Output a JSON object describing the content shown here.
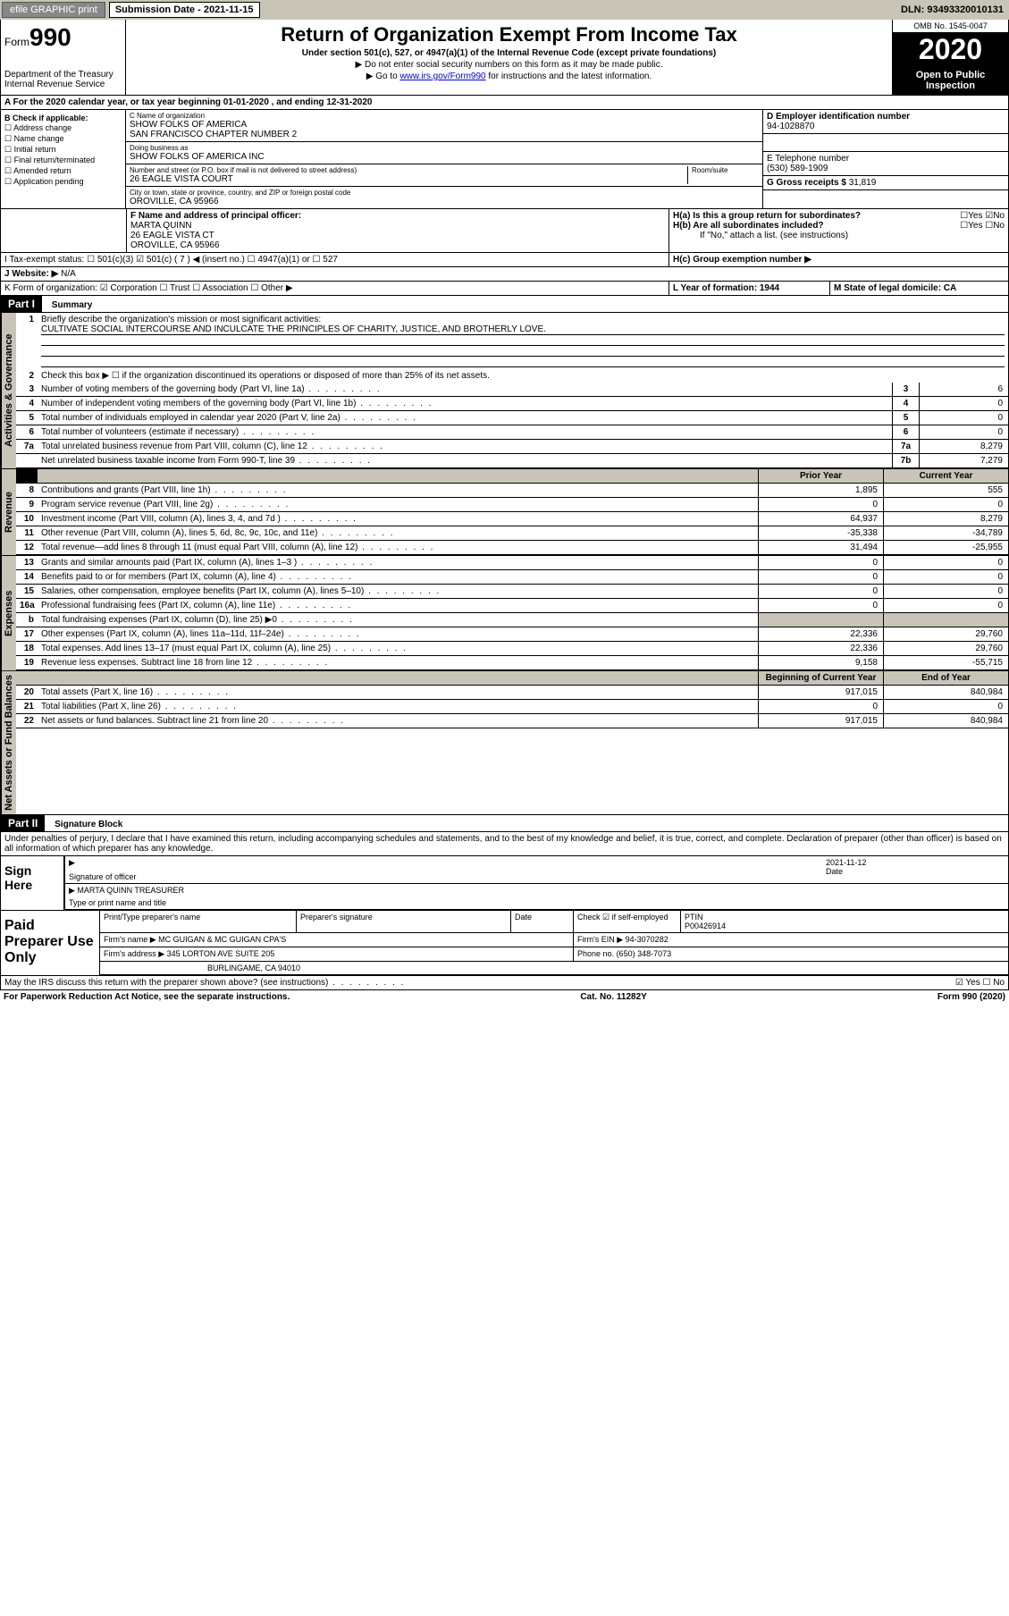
{
  "topbar": {
    "efile": "efile GRAPHIC print",
    "sub_label": "Submission Date - 2021-11-15",
    "dln": "DLN: 93493320010131"
  },
  "header": {
    "form": "Form",
    "form_num": "990",
    "dept": "Department of the Treasury\nInternal Revenue Service",
    "title": "Return of Organization Exempt From Income Tax",
    "subtitle": "Under section 501(c), 527, or 4947(a)(1) of the Internal Revenue Code (except private foundations)",
    "note1": "▶ Do not enter social security numbers on this form as it may be made public.",
    "note2_pre": "▶ Go to ",
    "note2_link": "www.irs.gov/Form990",
    "note2_post": " for instructions and the latest information.",
    "omb": "OMB No. 1545-0047",
    "year": "2020",
    "open": "Open to Public Inspection"
  },
  "section_a": "A  For the 2020 calendar year, or tax year beginning 01-01-2020    , and ending 12-31-2020",
  "col_b": {
    "hdr": "B Check if applicable:",
    "items": [
      "☐ Address change",
      "☐ Name change",
      "☐ Initial return",
      "☐ Final return/terminated",
      "☐ Amended return",
      "☐ Application pending"
    ]
  },
  "col_c": {
    "name_label": "C Name of organization",
    "name1": "SHOW FOLKS OF AMERICA",
    "name2": "SAN FRANCISCO CHAPTER NUMBER 2",
    "dba_label": "Doing business as",
    "dba": "SHOW FOLKS OF AMERICA INC",
    "addr_label": "Number and street (or P.O. box if mail is not delivered to street address)",
    "addr": "26 EAGLE VISTA COURT",
    "room_label": "Room/suite",
    "city_label": "City or town, state or province, country, and ZIP or foreign postal code",
    "city": "OROVILLE, CA  95966"
  },
  "col_d": {
    "ein_label": "D Employer identification number",
    "ein": "94-1028870",
    "tel_label": "E Telephone number",
    "tel": "(530) 589-1909",
    "gross_label": "G Gross receipts $",
    "gross": "31,819"
  },
  "row_f": {
    "label": "F  Name and address of principal officer:",
    "name": "MARTA QUINN",
    "addr1": "26 EAGLE VISTA CT",
    "addr2": "OROVILLE, CA  95966"
  },
  "row_h": {
    "ha": "H(a)  Is this a group return for subordinates?",
    "ha_ans": "☐Yes  ☑No",
    "hb": "H(b)  Are all subordinates included?",
    "hb_ans": "☐Yes  ☐No",
    "hb_note": "If \"No,\" attach a list. (see instructions)",
    "hc": "H(c)  Group exemption number ▶"
  },
  "row_i": {
    "label": "I    Tax-exempt status:",
    "opts": "☐ 501(c)(3)   ☑  501(c) ( 7 ) ◀ (insert no.)    ☐ 4947(a)(1) or   ☐ 527"
  },
  "row_j": {
    "label": "J   Website: ▶",
    "val": "N/A"
  },
  "row_k": {
    "label": "K Form of organization:  ☑ Corporation  ☐ Trust  ☐ Association  ☐ Other ▶",
    "l": "L Year of formation: 1944",
    "m": "M State of legal domicile: CA"
  },
  "part1": {
    "hdr": "Part I",
    "title": "Summary",
    "q1": "Briefly describe the organization's mission or most significant activities:",
    "q1_val": "CULTIVATE SOCIAL INTERCOURSE AND INCULCATE THE PRINCIPLES OF CHARITY, JUSTICE, AND BROTHERLY LOVE.",
    "q2": "Check this box ▶ ☐  if the organization discontinued its operations or disposed of more than 25% of its net assets.",
    "rows": [
      {
        "n": "3",
        "t": "Number of voting members of the governing body (Part VI, line 1a)",
        "a": "3",
        "v": "6"
      },
      {
        "n": "4",
        "t": "Number of independent voting members of the governing body (Part VI, line 1b)",
        "a": "4",
        "v": "0"
      },
      {
        "n": "5",
        "t": "Total number of individuals employed in calendar year 2020 (Part V, line 2a)",
        "a": "5",
        "v": "0"
      },
      {
        "n": "6",
        "t": "Total number of volunteers (estimate if necessary)",
        "a": "6",
        "v": "0"
      },
      {
        "n": "7a",
        "t": "Total unrelated business revenue from Part VIII, column (C), line 12",
        "a": "7a",
        "v": "8,279"
      },
      {
        "n": "",
        "t": "Net unrelated business taxable income from Form 990-T, line 39",
        "a": "7b",
        "v": "7,279"
      }
    ],
    "hdr_prior": "Prior Year",
    "hdr_curr": "Current Year",
    "vtab_gov": "Activities & Governance",
    "vtab_rev": "Revenue",
    "vtab_exp": "Expenses",
    "vtab_net": "Net Assets or Fund Balances",
    "revenue": [
      {
        "n": "8",
        "t": "Contributions and grants (Part VIII, line 1h)",
        "p": "1,895",
        "c": "555"
      },
      {
        "n": "9",
        "t": "Program service revenue (Part VIII, line 2g)",
        "p": "0",
        "c": "0"
      },
      {
        "n": "10",
        "t": "Investment income (Part VIII, column (A), lines 3, 4, and 7d )",
        "p": "64,937",
        "c": "8,279"
      },
      {
        "n": "11",
        "t": "Other revenue (Part VIII, column (A), lines 5, 6d, 8c, 9c, 10c, and 11e)",
        "p": "-35,338",
        "c": "-34,789"
      },
      {
        "n": "12",
        "t": "Total revenue—add lines 8 through 11 (must equal Part VIII, column (A), line 12)",
        "p": "31,494",
        "c": "-25,955"
      }
    ],
    "expenses": [
      {
        "n": "13",
        "t": "Grants and similar amounts paid (Part IX, column (A), lines 1–3 )",
        "p": "0",
        "c": "0"
      },
      {
        "n": "14",
        "t": "Benefits paid to or for members (Part IX, column (A), line 4)",
        "p": "0",
        "c": "0"
      },
      {
        "n": "15",
        "t": "Salaries, other compensation, employee benefits (Part IX, column (A), lines 5–10)",
        "p": "0",
        "c": "0"
      },
      {
        "n": "16a",
        "t": "Professional fundraising fees (Part IX, column (A), line 11e)",
        "p": "0",
        "c": "0"
      },
      {
        "n": "b",
        "t": "Total fundraising expenses (Part IX, column (D), line 25) ▶0",
        "p": "",
        "c": ""
      },
      {
        "n": "17",
        "t": "Other expenses (Part IX, column (A), lines 11a–11d, 11f–24e)",
        "p": "22,336",
        "c": "29,760"
      },
      {
        "n": "18",
        "t": "Total expenses. Add lines 13–17 (must equal Part IX, column (A), line 25)",
        "p": "22,336",
        "c": "29,760"
      },
      {
        "n": "19",
        "t": "Revenue less expenses. Subtract line 18 from line 12",
        "p": "9,158",
        "c": "-55,715"
      }
    ],
    "hdr_beg": "Beginning of Current Year",
    "hdr_end": "End of Year",
    "net": [
      {
        "n": "20",
        "t": "Total assets (Part X, line 16)",
        "p": "917,015",
        "c": "840,984"
      },
      {
        "n": "21",
        "t": "Total liabilities (Part X, line 26)",
        "p": "0",
        "c": "0"
      },
      {
        "n": "22",
        "t": "Net assets or fund balances. Subtract line 21 from line 20",
        "p": "917,015",
        "c": "840,984"
      }
    ]
  },
  "part2": {
    "hdr": "Part II",
    "title": "Signature Block",
    "penalty": "Under penalties of perjury, I declare that I have examined this return, including accompanying schedules and statements, and to the best of my knowledge and belief, it is true, correct, and complete. Declaration of preparer (other than officer) is based on all information of which preparer has any knowledge."
  },
  "sign": {
    "label": "Sign Here",
    "sig_label": "Signature of officer",
    "date": "2021-11-12",
    "date_label": "Date",
    "name": "MARTA QUINN  TREASURER",
    "name_label": "Type or print name and title"
  },
  "prep": {
    "label": "Paid Preparer Use Only",
    "r1_a": "Print/Type preparer's name",
    "r1_b": "Preparer's signature",
    "r1_c": "Date",
    "r1_d": "Check ☑ if self-employed",
    "r1_e": "PTIN",
    "r1_e_val": "P00426914",
    "r2_a": "Firm's name    ▶",
    "r2_a_val": "MC GUIGAN & MC GUIGAN CPA'S",
    "r2_b": "Firm's EIN ▶",
    "r2_b_val": "94-3070282",
    "r3_a": "Firm's address ▶",
    "r3_a_val": "345 LORTON AVE SUITE 205",
    "r3_b": "Phone no.",
    "r3_b_val": "(650) 348-7073",
    "r4": "BURLINGAME, CA  94010"
  },
  "discuss": {
    "q": "May the IRS discuss this return with the preparer shown above? (see instructions)",
    "ans": "☑ Yes  ☐ No"
  },
  "footer": {
    "left": "For Paperwork Reduction Act Notice, see the separate instructions.",
    "mid": "Cat. No. 11282Y",
    "right": "Form 990 (2020)"
  }
}
